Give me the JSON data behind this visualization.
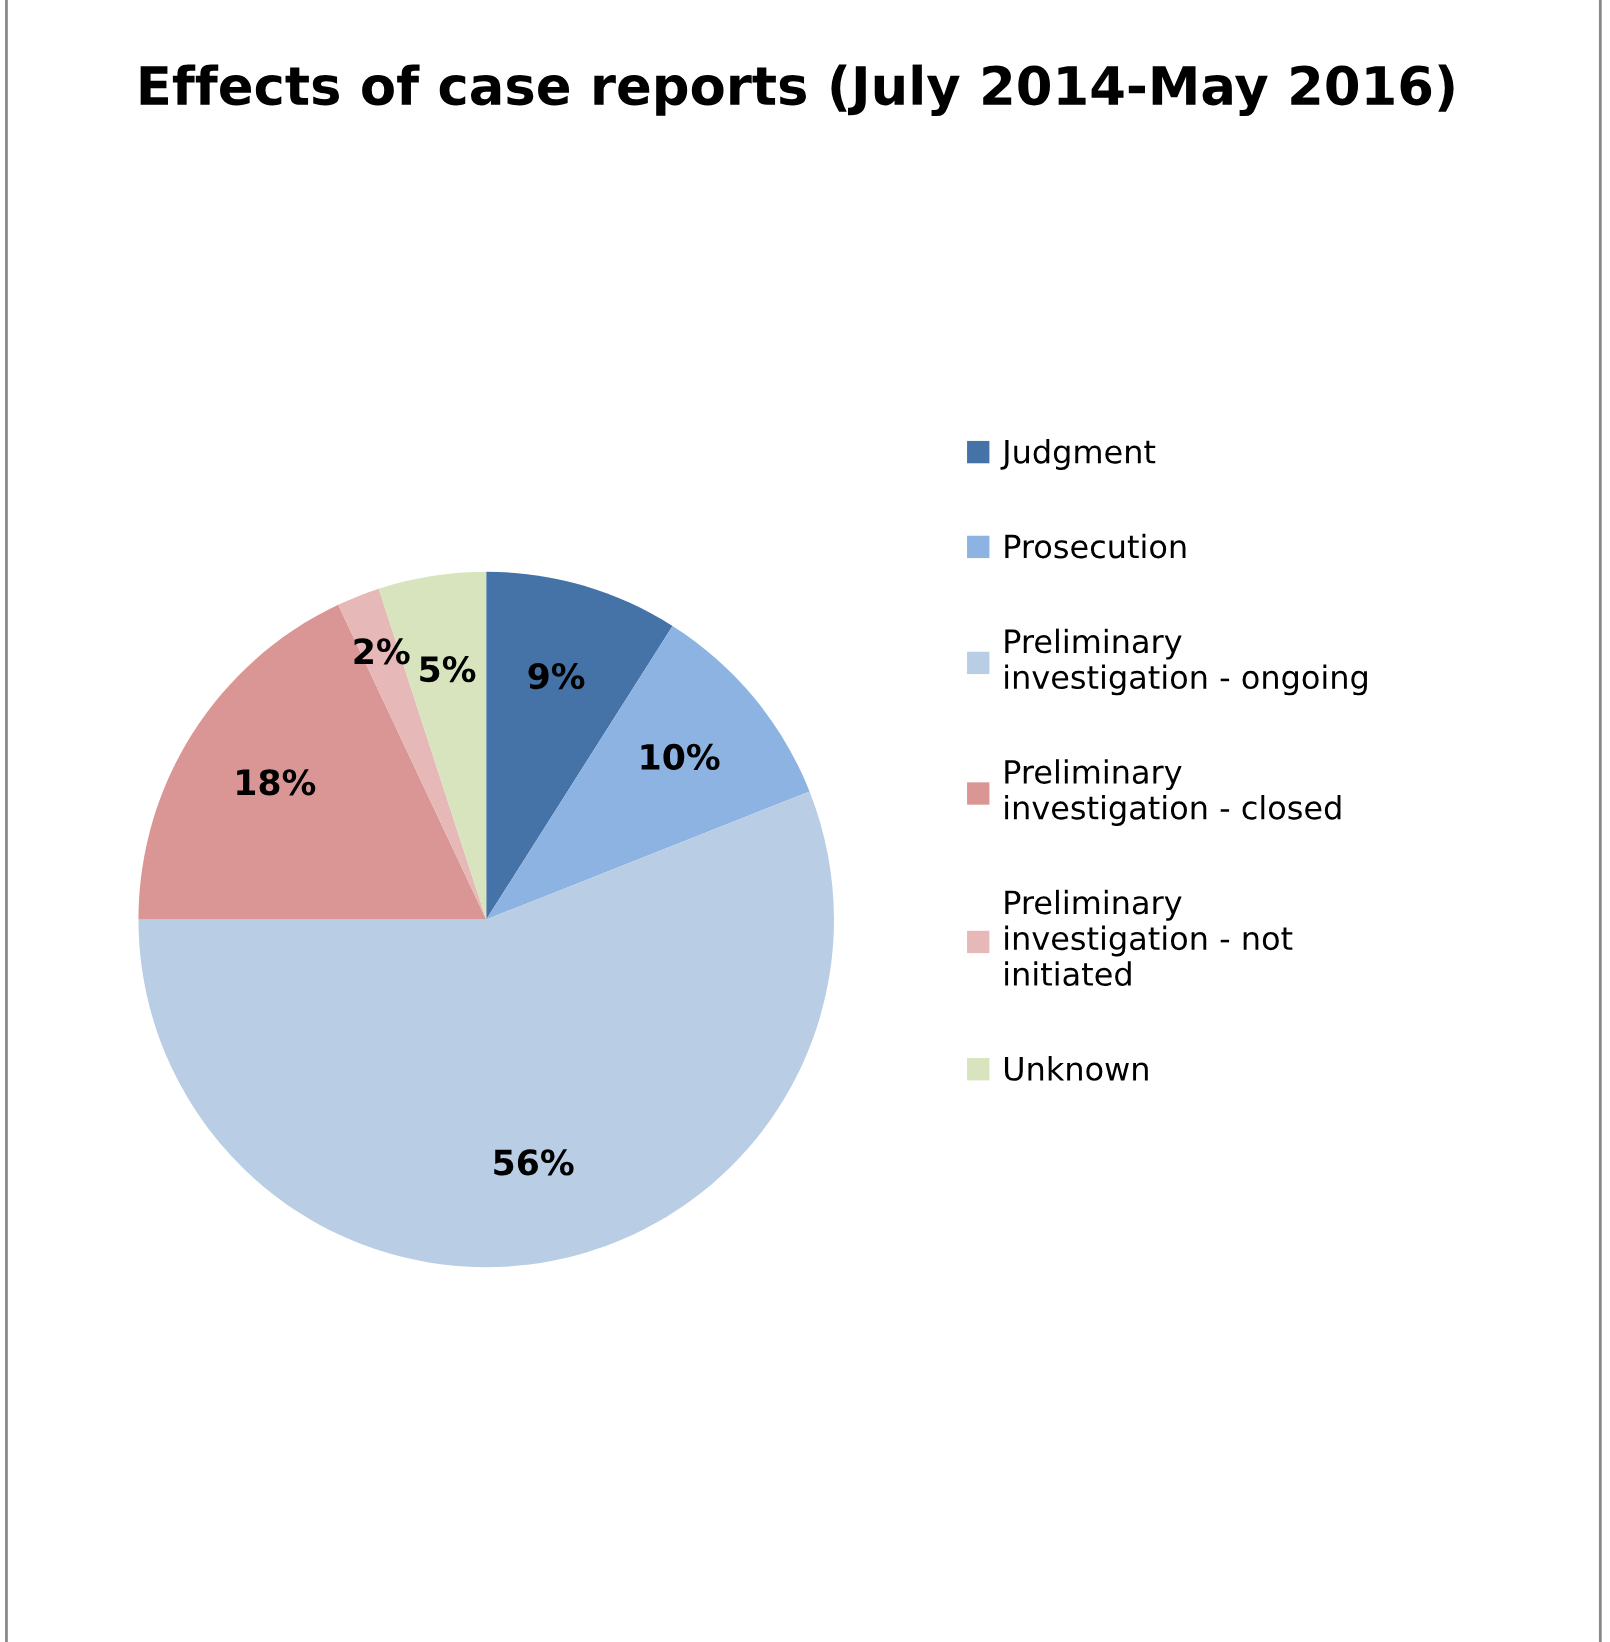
{
  "chart_data": {
    "type": "pie",
    "title": "Effects of case reports (July 2014-May 2016)",
    "categories": [
      "Judgment",
      "Prosecution",
      "Preliminary investigation - ongoing",
      "Preliminary investigation - closed",
      "Preliminary investigation - not initiated",
      "Unknown"
    ],
    "values": [
      9,
      10,
      56,
      18,
      2,
      5
    ],
    "colors": [
      "#4572a7",
      "#8db3e2",
      "#b9cde5",
      "#d99694",
      "#e6b9b8",
      "#d7e4bd"
    ],
    "value_labels": [
      "9%",
      "10%",
      "56%",
      "18%",
      "2%",
      "5%"
    ],
    "legend": "right"
  }
}
